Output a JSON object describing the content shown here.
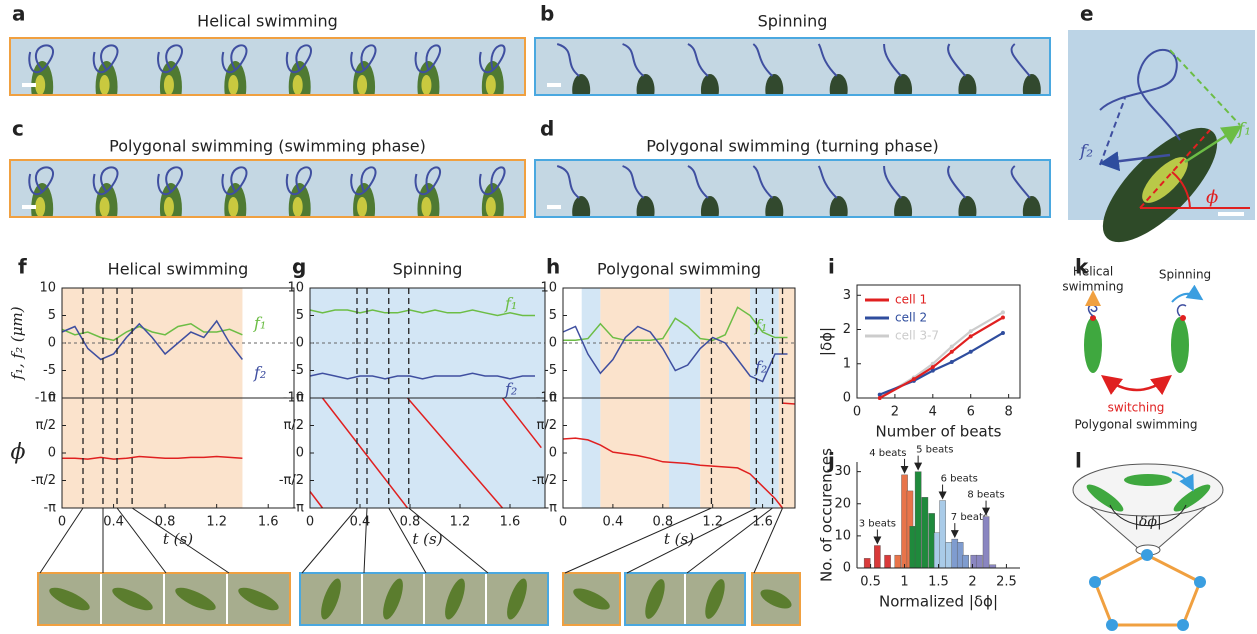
{
  "panels": {
    "a": {
      "label": "a",
      "title": "Helical swimming"
    },
    "b": {
      "label": "b",
      "title": "Spinning"
    },
    "c": {
      "label": "c",
      "title": "Polygonal swimming (swimming phase)"
    },
    "d": {
      "label": "d",
      "title": "Polygonal swimming (turning phase)"
    },
    "e": {
      "label": "e",
      "f1": "f₁",
      "f2": "f₂",
      "phi": "ϕ"
    },
    "k": {
      "label": "k",
      "helical": [
        "Helical",
        "swimming"
      ],
      "spinning": "Spinning",
      "switching": "switching",
      "polygonal": "Polygonal swimming"
    },
    "l": {
      "label": "l",
      "dphi": "|δϕ|"
    }
  },
  "chart_data": [
    {
      "type": "line",
      "label": "f",
      "title": "Helical swimming",
      "xlabel": "t (s)",
      "xlim": [
        0,
        1.8
      ],
      "xticks": [
        0,
        0.4,
        0.8,
        1.2,
        1.6
      ],
      "spans": [
        {
          "from": 0,
          "to": 1.4,
          "color": "#fbe3cc"
        }
      ],
      "vlines": [
        0.163,
        0.318,
        0.427,
        0.544
      ],
      "top": {
        "ylabel": "f₁, f₂ (μm)",
        "ylim": [
          -10,
          10
        ],
        "yticks": [
          -10,
          -5,
          0,
          5,
          10
        ],
        "zero_line": true,
        "x": [
          0,
          0.1,
          0.2,
          0.3,
          0.4,
          0.5,
          0.6,
          0.7,
          0.8,
          0.9,
          1,
          1.1,
          1.2,
          1.3,
          1.4
        ],
        "series": [
          {
            "name": "f₁",
            "color": "#6cbd45",
            "values": [
              2.5,
              1.5,
              2,
              1,
              0.5,
              2,
              3,
              2,
              1.5,
              3,
              3.5,
              2,
              2,
              2.5,
              1.5
            ]
          },
          {
            "name": "f₂",
            "color": "#3f4fa0",
            "values": [
              2,
              3,
              -1,
              -3,
              -2,
              1,
              3.5,
              1,
              -2,
              0,
              2,
              1,
              4,
              0,
              -3
            ]
          }
        ]
      },
      "bottom": {
        "ylabel": "ϕ",
        "ylim": [
          -3.1416,
          3.1416
        ],
        "yticks": [
          {
            "value": -3.1416,
            "label": "-π"
          },
          {
            "value": -1.5708,
            "label": "-π/2"
          },
          0,
          {
            "value": 1.5708,
            "label": "π/2"
          },
          {
            "value": 3.1416,
            "label": "π"
          }
        ],
        "x": [
          0,
          0.1,
          0.2,
          0.3,
          0.4,
          0.5,
          0.6,
          0.7,
          0.8,
          0.9,
          1,
          1.1,
          1.2,
          1.3,
          1.4
        ],
        "series": [
          {
            "color": "#e02020",
            "values": [
              -0.3,
              -0.3,
              -0.35,
              -0.25,
              -0.35,
              -0.3,
              -0.2,
              -0.25,
              -0.3,
              -0.3,
              -0.25,
              -0.25,
              -0.2,
              -0.25,
              -0.3
            ]
          }
        ]
      }
    },
    {
      "type": "line",
      "label": "g",
      "title": "Spinning",
      "xlabel": "t (s)",
      "xlim": [
        0,
        1.88
      ],
      "xticks": [
        0,
        0.4,
        0.8,
        1.2,
        1.6
      ],
      "spans": [
        {
          "from": 0,
          "to": 1.88,
          "color": "#d3e6f5"
        }
      ],
      "vlines": [
        0.376,
        0.456,
        0.63,
        0.79
      ],
      "top": {
        "ylim": [
          -10,
          10
        ],
        "yticks": [
          -10,
          -5,
          0,
          5,
          10
        ],
        "zero_line": true,
        "x": [
          0,
          0.1,
          0.2,
          0.3,
          0.4,
          0.5,
          0.6,
          0.7,
          0.8,
          0.9,
          1,
          1.1,
          1.2,
          1.3,
          1.4,
          1.5,
          1.6,
          1.7,
          1.8
        ],
        "series": [
          {
            "name": "f₁",
            "color": "#6cbd45",
            "values": [
              6,
              5.5,
              6,
              6,
              5.5,
              6,
              5.5,
              5.5,
              6,
              5.5,
              6,
              5.5,
              5.5,
              6,
              5.5,
              5,
              5.5,
              5,
              5
            ]
          },
          {
            "name": "f₂",
            "color": "#3f4fa0",
            "values": [
              -6,
              -5.5,
              -6,
              -6.5,
              -6,
              -6,
              -6.5,
              -6,
              -6,
              -6.5,
              -6,
              -6,
              -6,
              -5.5,
              -6,
              -6,
              -6.5,
              -6,
              -6
            ]
          }
        ]
      },
      "bottom": {
        "ylim": [
          -3.1416,
          3.1416
        ],
        "yticks": [
          {
            "value": -3.1416,
            "label": "-π"
          },
          {
            "value": -1.5708,
            "label": "-π/2"
          },
          0,
          {
            "value": 1.5708,
            "label": "π/2"
          },
          {
            "value": 3.1416,
            "label": "π"
          }
        ],
        "x": [
          0,
          0.1,
          0.1,
          0.1,
          0.78,
          0.78,
          0.78,
          1.54,
          1.54,
          1.54,
          1.85
        ],
        "series": [
          {
            "color": "#e02020",
            "values": [
              -2.2,
              -3.1416,
              null,
              3.1416,
              -3.1416,
              null,
              3.1416,
              -3.1416,
              null,
              3.1416,
              0.3
            ]
          }
        ]
      }
    },
    {
      "type": "line",
      "label": "h",
      "title": "Polygonal swimming",
      "xlabel": "t (s)",
      "xlim": [
        0,
        1.86
      ],
      "xticks": [
        0,
        0.4,
        0.8,
        1.2,
        1.6
      ],
      "spans": [
        {
          "from": 0.15,
          "to": 0.3,
          "color": "#d3e6f5"
        },
        {
          "from": 0.3,
          "to": 0.85,
          "color": "#fbe3cc"
        },
        {
          "from": 0.85,
          "to": 1.1,
          "color": "#d3e6f5"
        },
        {
          "from": 1.1,
          "to": 1.5,
          "color": "#fbe3cc"
        },
        {
          "from": 1.5,
          "to": 1.73,
          "color": "#d3e6f5"
        },
        {
          "from": 1.73,
          "to": 1.86,
          "color": "#fbe3cc"
        }
      ],
      "vlines": [
        1.19,
        1.55,
        1.68,
        1.76
      ],
      "top": {
        "ylim": [
          -10,
          10
        ],
        "yticks": [
          -10,
          -5,
          0,
          5,
          10
        ],
        "zero_line": true,
        "x": [
          0,
          0.1,
          0.2,
          0.3,
          0.4,
          0.5,
          0.6,
          0.7,
          0.8,
          0.9,
          1,
          1.1,
          1.2,
          1.3,
          1.4,
          1.5,
          1.6,
          1.7,
          1.8
        ],
        "series": [
          {
            "name": "f₁",
            "color": "#6cbd45",
            "values": [
              0.5,
              0.5,
              0.8,
              3.5,
              1,
              0.5,
              0.5,
              0.5,
              0.8,
              4.5,
              3,
              0.8,
              0.5,
              1.5,
              6.5,
              5,
              2,
              1,
              1
            ]
          },
          {
            "name": "f₂",
            "color": "#3f4fa0",
            "values": [
              2,
              3,
              -2,
              -5.5,
              -3,
              1,
              3,
              2,
              -1,
              -5,
              -4,
              -1,
              1,
              0,
              -3,
              -6,
              -7,
              -2,
              -2
            ]
          }
        ]
      },
      "bottom": {
        "ylim": [
          -3.1416,
          3.1416
        ],
        "yticks": [
          {
            "value": -3.1416,
            "label": "-π"
          },
          {
            "value": -1.5708,
            "label": "-π/2"
          },
          0,
          {
            "value": 1.5708,
            "label": "π/2"
          },
          {
            "value": 3.1416,
            "label": "π"
          }
        ],
        "x": [
          0,
          0.1,
          0.2,
          0.3,
          0.4,
          0.5,
          0.6,
          0.7,
          0.8,
          0.9,
          1,
          1.1,
          1.2,
          1.3,
          1.4,
          1.5,
          1.6,
          1.7,
          1.76,
          1.76,
          1.76,
          1.86
        ],
        "series": [
          {
            "color": "#e02020",
            "values": [
              0.8,
              0.85,
              0.75,
              0.45,
              0.05,
              -0.05,
              -0.15,
              -0.3,
              -0.5,
              -0.55,
              -0.6,
              -0.7,
              -0.75,
              -0.8,
              -0.85,
              -1.2,
              -1.9,
              -2.6,
              -3.1416,
              null,
              2.85,
              2.8
            ]
          }
        ]
      }
    },
    {
      "type": "line",
      "label": "i",
      "ylabel": "|δϕ|",
      "xlabel": "Number of beats",
      "xlim": [
        0,
        8.6
      ],
      "xticks": [
        0,
        2,
        4,
        6,
        8
      ],
      "ylim": [
        0,
        3.3
      ],
      "yticks": [
        0,
        1,
        2,
        3
      ],
      "legend": "upper left",
      "x": [
        1.2,
        3,
        4,
        5,
        6,
        7.7
      ],
      "series": [
        {
          "name": "cell 1",
          "color": "#e02020",
          "values": [
            0,
            0.55,
            0.9,
            1.35,
            1.8,
            2.35
          ]
        },
        {
          "name": "cell 2",
          "color": "#2f4d9e",
          "values": [
            0.1,
            0.5,
            0.8,
            1.05,
            1.35,
            1.9
          ]
        },
        {
          "name": "cell 3-7",
          "color": "#cccccc",
          "values": [
            0,
            0.6,
            1,
            1.5,
            1.95,
            2.5
          ]
        }
      ]
    },
    {
      "type": "bar",
      "label": "j",
      "ylabel": "No. of occurences",
      "xlabel": "Normalized |δϕ|",
      "xlim": [
        0.3,
        2.7
      ],
      "xticks": [
        0.5,
        1,
        1.5,
        2,
        2.5
      ],
      "ylim": [
        0,
        33
      ],
      "yticks": [
        0,
        10,
        20,
        30
      ],
      "bar_width": 0.09,
      "series": [
        {
          "name": "3 beats",
          "color": "#d93a3a",
          "x": [
            0.45,
            0.6,
            0.75
          ],
          "values": [
            3,
            7,
            4
          ]
        },
        {
          "name": "4 beats",
          "color": "#e8744a",
          "x": [
            0.9,
            1,
            1.08
          ],
          "values": [
            4,
            29,
            24
          ]
        },
        {
          "name": "5 beats",
          "color": "#1f8a3c",
          "x": [
            1.12,
            1.2,
            1.3,
            1.4
          ],
          "values": [
            13,
            30,
            22,
            17
          ]
        },
        {
          "name": "6 beats",
          "color": "#a9cbe8",
          "x": [
            1.48,
            1.56,
            1.65
          ],
          "values": [
            11,
            21,
            8
          ]
        },
        {
          "name": "7 beats",
          "color": "#7f9ccf",
          "x": [
            1.74,
            1.82,
            1.9
          ],
          "values": [
            9,
            8,
            4
          ]
        },
        {
          "name": "8 beats",
          "color": "#8a86c0",
          "x": [
            2.02,
            2.1,
            2.2,
            2.3
          ],
          "values": [
            4,
            4,
            16,
            1
          ]
        }
      ]
    }
  ]
}
